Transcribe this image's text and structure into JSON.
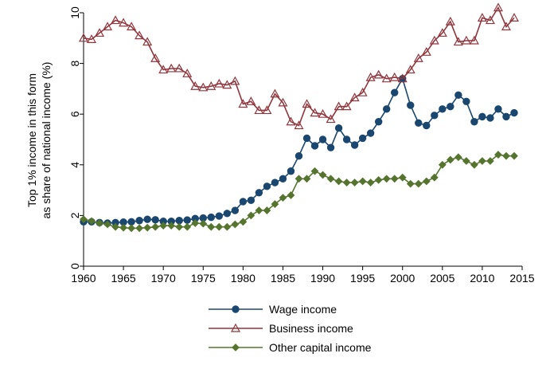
{
  "chart_data": {
    "type": "line",
    "ylabel_lines": [
      "Top 1% income in this form",
      "as share of national income (%)"
    ],
    "xlabel": "",
    "xlim": [
      1960,
      2015
    ],
    "ylim": [
      0,
      10
    ],
    "xticks": [
      1960,
      1965,
      1970,
      1975,
      1980,
      1985,
      1990,
      1995,
      2000,
      2005,
      2010,
      2015
    ],
    "yticks": [
      0,
      2,
      4,
      6,
      8,
      10
    ],
    "grid": false,
    "legend_position": "bottom",
    "x": [
      1960,
      1961,
      1962,
      1963,
      1964,
      1965,
      1966,
      1967,
      1968,
      1969,
      1970,
      1971,
      1972,
      1973,
      1974,
      1975,
      1976,
      1977,
      1978,
      1979,
      1980,
      1981,
      1982,
      1983,
      1984,
      1985,
      1986,
      1987,
      1988,
      1989,
      1990,
      1991,
      1992,
      1993,
      1994,
      1995,
      1996,
      1997,
      1998,
      1999,
      2000,
      2001,
      2002,
      2003,
      2004,
      2005,
      2006,
      2007,
      2008,
      2009,
      2010,
      2011,
      2012,
      2013,
      2014
    ],
    "series": [
      {
        "name": "Wage income",
        "color": "#1a476f",
        "marker": "circle",
        "values": [
          1.75,
          1.75,
          1.72,
          1.7,
          1.72,
          1.74,
          1.75,
          1.8,
          1.85,
          1.83,
          1.77,
          1.77,
          1.8,
          1.82,
          1.88,
          1.9,
          1.93,
          1.98,
          2.08,
          2.2,
          2.55,
          2.6,
          2.9,
          3.15,
          3.3,
          3.45,
          3.75,
          4.35,
          5.05,
          4.75,
          5.0,
          4.68,
          5.45,
          5.0,
          4.78,
          5.05,
          5.25,
          5.7,
          6.2,
          6.85,
          7.4,
          6.35,
          5.65,
          5.55,
          5.95,
          6.2,
          6.3,
          6.75,
          6.5,
          5.7,
          5.9,
          5.85,
          6.2,
          5.9,
          6.05
        ]
      },
      {
        "name": "Business income",
        "color": "#90353b",
        "marker": "triangle",
        "values": [
          9.0,
          8.95,
          9.2,
          9.45,
          9.7,
          9.6,
          9.45,
          9.1,
          8.85,
          8.2,
          7.75,
          7.8,
          7.8,
          7.6,
          7.1,
          7.05,
          7.1,
          7.2,
          7.15,
          7.3,
          6.4,
          6.5,
          6.15,
          6.15,
          6.8,
          6.45,
          5.7,
          5.55,
          6.4,
          6.05,
          6.0,
          5.8,
          6.3,
          6.3,
          6.65,
          6.85,
          7.45,
          7.55,
          7.4,
          7.45,
          7.4,
          7.75,
          8.2,
          8.45,
          8.9,
          9.2,
          9.65,
          8.85,
          8.9,
          8.9,
          9.8,
          9.7,
          10.2,
          9.45,
          9.8
        ]
      },
      {
        "name": "Other capital income",
        "color": "#55752f",
        "marker": "diamond",
        "values": [
          1.85,
          1.78,
          1.7,
          1.65,
          1.55,
          1.52,
          1.5,
          1.5,
          1.52,
          1.55,
          1.6,
          1.6,
          1.55,
          1.55,
          1.7,
          1.68,
          1.55,
          1.55,
          1.55,
          1.65,
          1.75,
          2.0,
          2.2,
          2.2,
          2.45,
          2.7,
          2.8,
          3.45,
          3.45,
          3.75,
          3.6,
          3.45,
          3.35,
          3.3,
          3.3,
          3.35,
          3.3,
          3.4,
          3.45,
          3.45,
          3.5,
          3.25,
          3.25,
          3.35,
          3.5,
          4.0,
          4.2,
          4.3,
          4.15,
          4.0,
          4.15,
          4.15,
          4.4,
          4.35,
          4.35
        ]
      }
    ]
  }
}
